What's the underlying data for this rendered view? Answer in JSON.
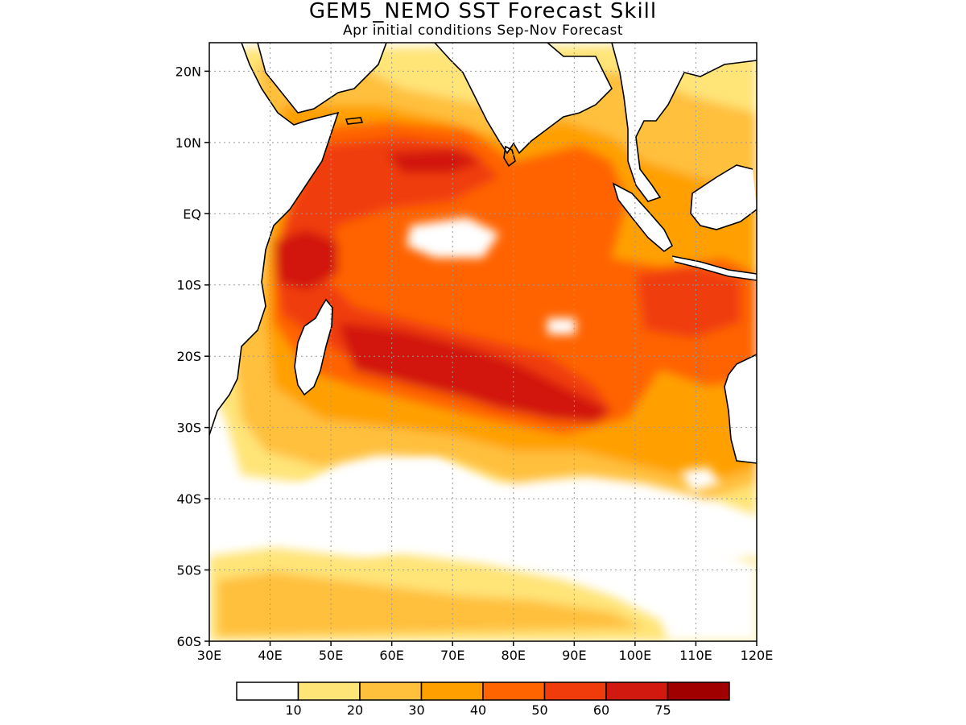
{
  "title": "GEM5_NEMO SST Forecast Skill",
  "subtitle": "Apr initial conditions  Sep-Nov Forecast",
  "map": {
    "lon_range": [
      30,
      120
    ],
    "lat_range": [
      -60,
      24
    ],
    "lat_ticks": [
      {
        "value": 20,
        "label": "20N"
      },
      {
        "value": 10,
        "label": "10N"
      },
      {
        "value": 0,
        "label": "EQ"
      },
      {
        "value": -10,
        "label": "10S"
      },
      {
        "value": -20,
        "label": "20S"
      },
      {
        "value": -30,
        "label": "30S"
      },
      {
        "value": -40,
        "label": "40S"
      },
      {
        "value": -50,
        "label": "50S"
      },
      {
        "value": -60,
        "label": "60S"
      }
    ],
    "lon_ticks": [
      {
        "value": 30,
        "label": "30E"
      },
      {
        "value": 40,
        "label": "40E"
      },
      {
        "value": 50,
        "label": "50E"
      },
      {
        "value": 60,
        "label": "60E"
      },
      {
        "value": 70,
        "label": "70E"
      },
      {
        "value": 80,
        "label": "80E"
      },
      {
        "value": 90,
        "label": "90E"
      },
      {
        "value": 100,
        "label": "100E"
      },
      {
        "value": 110,
        "label": "110E"
      },
      {
        "value": 120,
        "label": "120E"
      }
    ],
    "gridlines": "dotted"
  },
  "colorbar": {
    "colors": [
      "#ffffff",
      "#ffe478",
      "#ffc03c",
      "#ffa000",
      "#ff6400",
      "#f03c0a",
      "#d2190f",
      "#a00000"
    ],
    "labels": [
      "10",
      "20",
      "30",
      "40",
      "50",
      "60",
      "75"
    ]
  }
}
